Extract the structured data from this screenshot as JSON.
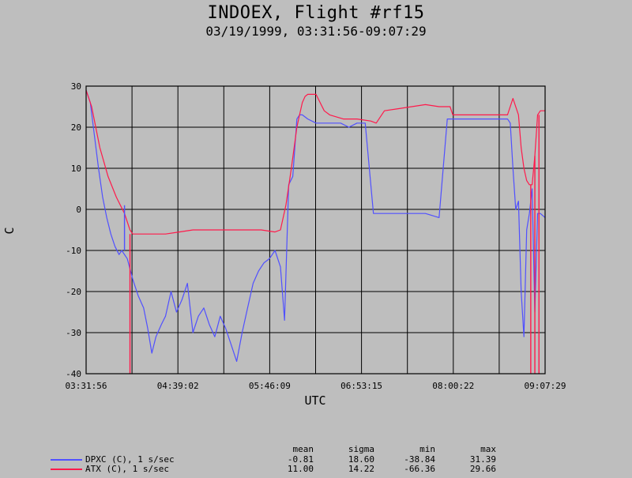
{
  "chart_data": {
    "type": "line",
    "title": "INDOEX, Flight #rf15",
    "subtitle": "03/19/1999, 03:31:56-09:07:29",
    "xlabel": "UTC",
    "ylabel": "C",
    "x_tick_labels": [
      "03:31:56",
      "04:39:02",
      "05:46:09",
      "06:53:15",
      "08:00:22",
      "09:07:29"
    ],
    "y_ticks": [
      30,
      20,
      10,
      0,
      -10,
      -20,
      -30,
      -40
    ],
    "ylim": [
      -40,
      30
    ],
    "grid": true,
    "series": [
      {
        "name": "DPXC (C), 1 s/sec",
        "color": "#5050ff",
        "x": [
          "03:31:56",
          "03:35:00",
          "03:38:00",
          "03:41:00",
          "03:44:00",
          "03:47:00",
          "03:50:00",
          "03:53:00",
          "03:56:00",
          "03:58:00",
          "04:02:00",
          "04:06:00",
          "04:10:00",
          "04:14:00",
          "04:17:00",
          "04:20:00",
          "04:23:00",
          "04:27:00",
          "04:30:00",
          "04:34:00",
          "04:38:00",
          "04:42:00",
          "04:46:00",
          "04:50:00",
          "04:54:00",
          "04:58:00",
          "05:02:00",
          "05:06:00",
          "05:10:00",
          "05:14:00",
          "05:18:00",
          "05:22:00",
          "05:26:00",
          "05:30:00",
          "05:34:00",
          "05:38:00",
          "05:42:00",
          "05:46:00",
          "05:50:00",
          "05:54:00",
          "05:57:00",
          "06:00:00",
          "06:03:00",
          "06:06:00",
          "06:08:00",
          "06:10:00",
          "06:14:00",
          "06:20:00",
          "06:26:00",
          "06:32:00",
          "06:38:00",
          "06:44:00",
          "06:50:00",
          "06:56:00",
          "07:02:00",
          "07:08:00",
          "07:12:00",
          "07:14:00",
          "07:20:00",
          "07:30:00",
          "07:40:00",
          "07:50:00",
          "07:56:00",
          "07:58:00",
          "08:04:00",
          "08:14:00",
          "08:24:00",
          "08:34:00",
          "08:40:00",
          "08:42:00",
          "08:44:00",
          "08:46:00",
          "08:48:00",
          "08:50:00",
          "08:52:00",
          "08:54:00",
          "08:56:00",
          "08:58:00",
          "09:00:00",
          "09:02:00",
          "09:04:00",
          "09:07:29"
        ],
        "values": [
          29,
          26,
          18,
          10,
          3,
          -2,
          -6,
          -9,
          -11,
          -10,
          -12,
          -17,
          -21,
          -24,
          -29,
          -35,
          -31,
          -28,
          -26,
          -20,
          -25,
          -22,
          -18,
          -30,
          -26,
          -24,
          -28,
          -31,
          -26,
          -29,
          -33,
          -37,
          -30,
          -24,
          -18,
          -15,
          -13,
          -12,
          -10,
          -14,
          -27,
          6,
          8,
          22,
          23,
          23,
          22,
          21,
          21,
          21,
          21,
          20,
          21,
          21,
          -1,
          -1,
          -1,
          -1,
          -1,
          -1,
          -1,
          -2,
          22,
          22,
          22,
          22,
          22,
          22,
          22,
          21,
          10,
          0,
          2,
          -20,
          -31,
          -5,
          -1,
          5,
          -25,
          -1,
          -1,
          -2
        ]
      },
      {
        "name": "ATX (C), 1 s/sec",
        "color": "#ff1a4b",
        "x": [
          "03:31:56",
          "03:36:00",
          "03:42:00",
          "03:48:00",
          "03:54:00",
          "04:00:00",
          "04:04:00",
          "04:06:00",
          "04:10:00",
          "04:20:00",
          "04:30:00",
          "04:40:00",
          "04:50:00",
          "05:00:00",
          "05:10:00",
          "05:20:00",
          "05:30:00",
          "05:40:00",
          "05:50:00",
          "05:54:00",
          "05:58:00",
          "06:02:00",
          "06:06:00",
          "06:08:00",
          "06:10:00",
          "06:12:00",
          "06:14:00",
          "06:20:00",
          "06:26:00",
          "06:30:00",
          "06:40:00",
          "06:50:00",
          "07:00:00",
          "07:04:00",
          "07:10:00",
          "07:20:00",
          "07:30:00",
          "07:40:00",
          "07:50:00",
          "07:58:00",
          "08:00:00",
          "08:10:00",
          "08:20:00",
          "08:30:00",
          "08:40:00",
          "08:44:00",
          "08:48:00",
          "08:50:00",
          "08:52:00",
          "08:54:00",
          "08:56:00",
          "08:58:00",
          "09:00:00",
          "09:02:00",
          "09:04:00",
          "09:07:29"
        ],
        "values": [
          29,
          25,
          15,
          8,
          3,
          -1,
          -5,
          -6,
          -6,
          -6,
          -6,
          -5.5,
          -5,
          -5,
          -5,
          -5,
          -5,
          -5,
          -5.5,
          -5,
          1,
          10,
          20,
          23,
          26,
          27.5,
          28,
          28,
          24,
          23,
          22,
          22,
          21.5,
          21,
          24,
          24.5,
          25,
          25.5,
          25,
          25,
          23,
          23,
          23,
          23,
          23,
          27,
          23,
          15,
          10,
          7,
          6,
          6,
          13,
          23,
          24,
          24
        ]
      }
    ],
    "spikes": [
      {
        "series": "DPXC (C), 1 s/sec",
        "time": "04:00:00",
        "from": -10,
        "to": 1
      },
      {
        "series": "ATX (C), 1 s/sec",
        "time": "04:04:00",
        "from": -6,
        "to": -40
      },
      {
        "series": "ATX (C), 1 s/sec",
        "time": "08:57:00",
        "from": 6,
        "to": -40
      },
      {
        "series": "ATX (C), 1 s/sec",
        "time": "09:00:00",
        "from": 13,
        "to": -40
      },
      {
        "series": "ATX (C), 1 s/sec",
        "time": "09:03:00",
        "from": 23,
        "to": -40
      }
    ]
  },
  "stats": {
    "headers": [
      "mean",
      "sigma",
      "min",
      "max"
    ],
    "rows": [
      {
        "label": "DPXC (C), 1 s/sec",
        "color": "#5050ff",
        "values": [
          "-0.81",
          "18.60",
          "-38.84",
          "31.39"
        ]
      },
      {
        "label": "ATX (C), 1 s/sec",
        "color": "#ff1a4b",
        "values": [
          "11.00",
          "14.22",
          "-66.36",
          "29.66"
        ]
      }
    ]
  }
}
